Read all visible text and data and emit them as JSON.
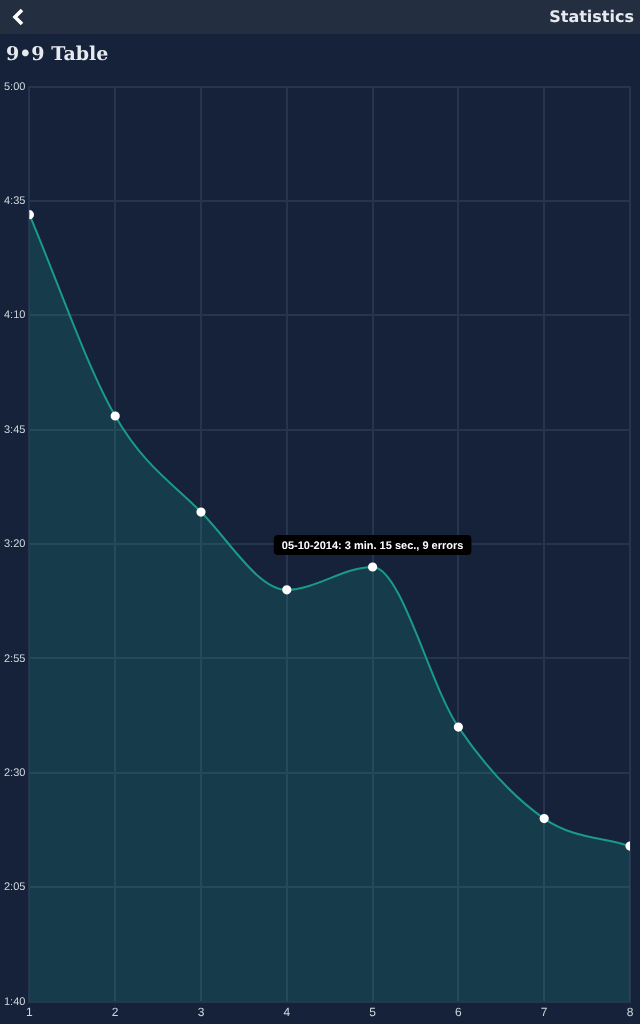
{
  "chart_data": {
    "type": "area",
    "title": "9•9 Table",
    "annotations": [
      "Statistics",
      {
        "text": "05-10-2014: 3 min. 15 sec., 9 errors",
        "x": 5,
        "y": 195
      }
    ],
    "x": [
      1,
      2,
      3,
      4,
      5,
      6,
      7,
      8
    ],
    "series": [
      {
        "color": "#1a9a87",
        "values": [
          272,
          228,
          207,
          190,
          195,
          160,
          140,
          134
        ]
      }
    ],
    "xlim": [
      1,
      8
    ],
    "xticks": [
      1,
      2,
      3,
      4,
      5,
      6,
      7,
      8
    ],
    "ylim": [
      100,
      300
    ],
    "yticks": [
      {
        "value": 100,
        "label": "1:40"
      },
      {
        "value": 125,
        "label": "2:05"
      },
      {
        "value": 150,
        "label": "2:30"
      },
      {
        "value": 175,
        "label": "2:55"
      },
      {
        "value": 200,
        "label": "3:20"
      },
      {
        "value": 225,
        "label": "3:45"
      },
      {
        "value": 250,
        "label": "4:10"
      },
      {
        "value": 275,
        "label": "4:35"
      },
      {
        "value": 300,
        "label": "5:00"
      }
    ],
    "grid": true,
    "marker": "circle",
    "legend": false
  }
}
